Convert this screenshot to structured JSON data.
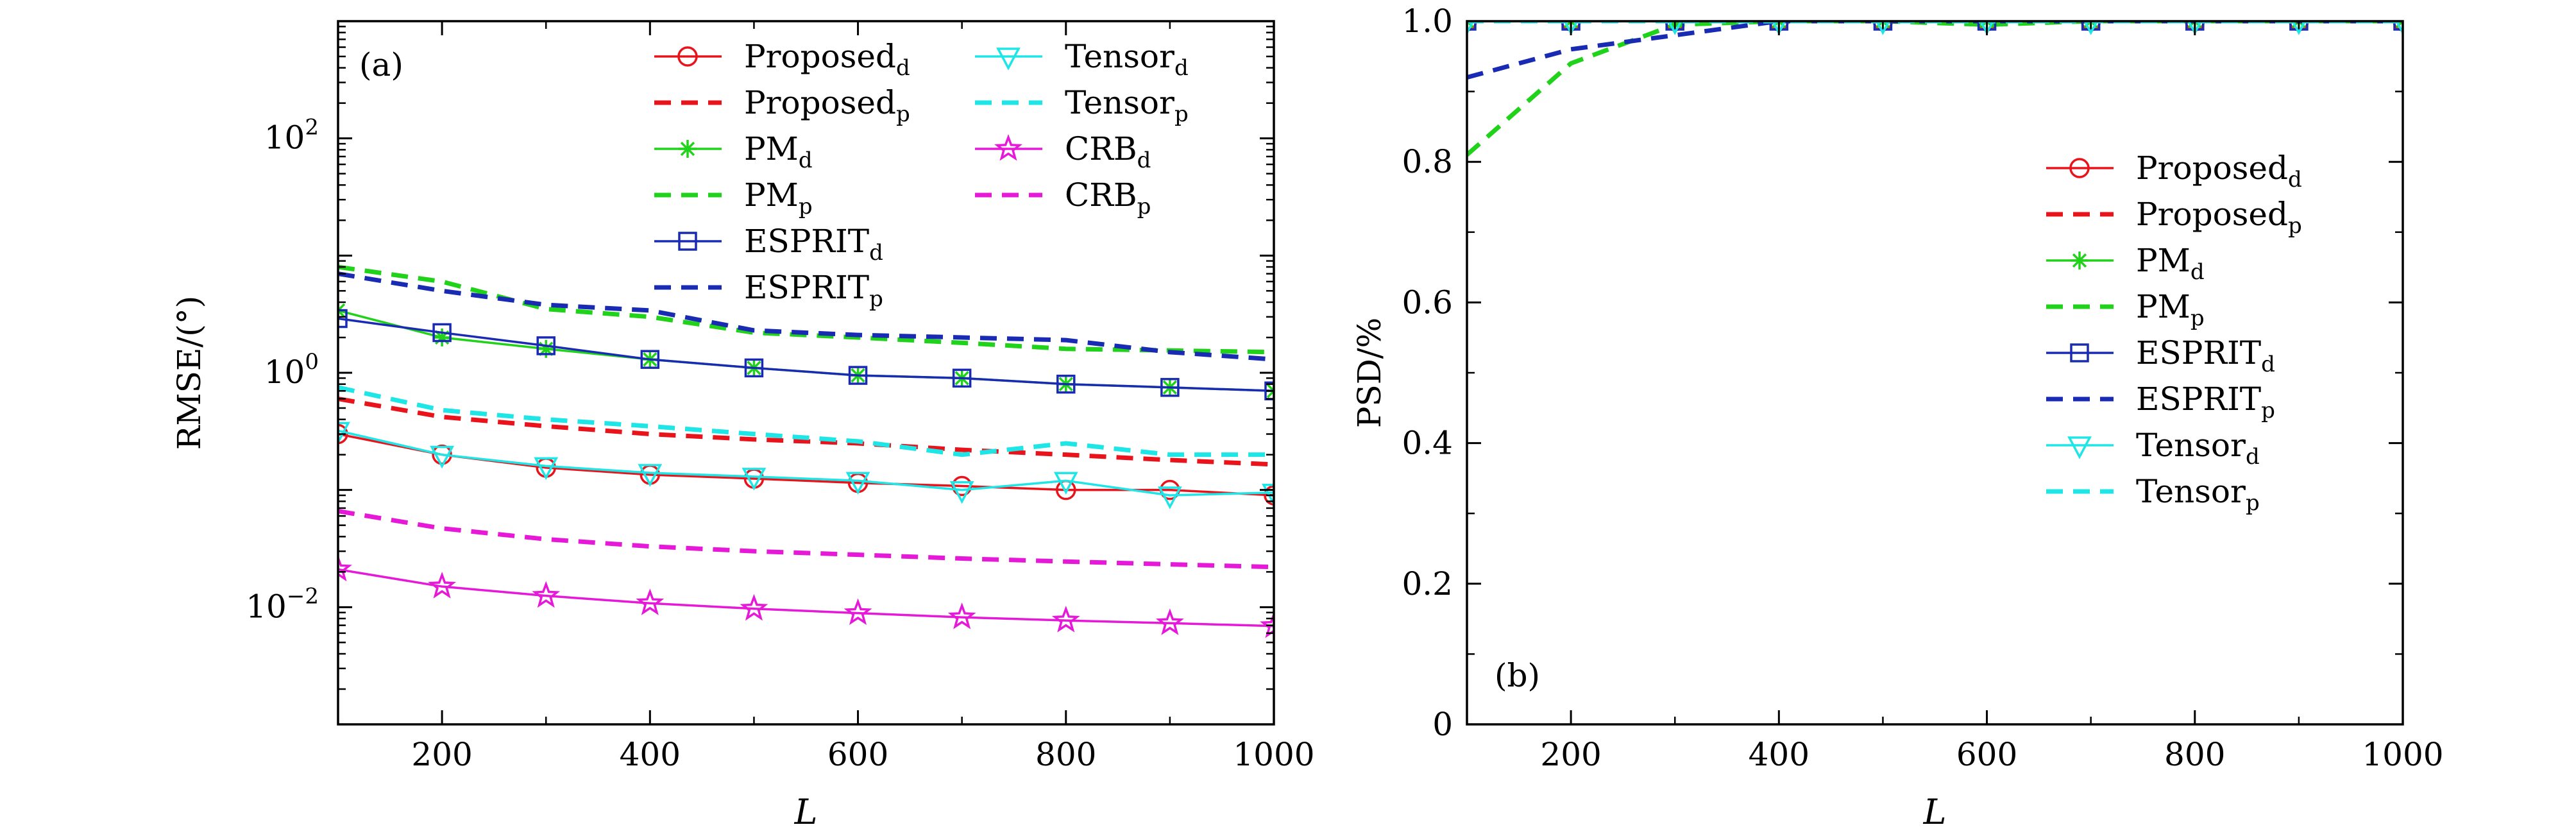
{
  "chart_data": [
    {
      "panel_label": "(a)",
      "type": "line",
      "xlabel": "L",
      "ylabel": "RMSE/(°)",
      "xlim": [
        100,
        1000
      ],
      "ylim": [
        0.001,
        1000
      ],
      "yscale": "log",
      "xticks": [
        200,
        400,
        600,
        800,
        1000
      ],
      "yticks": [
        {
          "value": 0.01,
          "base": "10",
          "exp": "−2"
        },
        {
          "value": 1,
          "base": "10",
          "exp": "0"
        },
        {
          "value": 100,
          "base": "10",
          "exp": "2"
        }
      ],
      "grid": false,
      "legend": "top-right, two columns",
      "x": [
        100,
        200,
        300,
        400,
        500,
        600,
        700,
        800,
        900,
        1000
      ],
      "series": [
        {
          "name": "Proposed",
          "sub": "d",
          "color": "#e8131b",
          "style": "solid",
          "marker": "circle",
          "values": [
            0.3,
            0.2,
            0.155,
            0.135,
            0.125,
            0.115,
            0.108,
            0.1,
            0.1,
            0.09
          ]
        },
        {
          "name": "Proposed",
          "sub": "p",
          "color": "#e8131b",
          "style": "dashed",
          "marker": "none",
          "values": [
            0.6,
            0.42,
            0.35,
            0.3,
            0.27,
            0.25,
            0.22,
            0.2,
            0.18,
            0.165
          ]
        },
        {
          "name": "PM",
          "sub": "d",
          "color": "#21d21a",
          "style": "solid",
          "marker": "asterisk",
          "values": [
            3.4,
            2.0,
            1.6,
            1.3,
            1.1,
            0.95,
            0.9,
            0.8,
            0.75,
            0.7
          ]
        },
        {
          "name": "PM",
          "sub": "p",
          "color": "#21d21a",
          "style": "dashed",
          "marker": "none",
          "values": [
            8.0,
            6.0,
            3.5,
            3.0,
            2.2,
            2.0,
            1.8,
            1.6,
            1.55,
            1.5
          ]
        },
        {
          "name": "ESPRIT",
          "sub": "d",
          "color": "#1a2bb3",
          "style": "solid",
          "marker": "square",
          "values": [
            2.9,
            2.2,
            1.7,
            1.3,
            1.1,
            0.95,
            0.9,
            0.8,
            0.75,
            0.7
          ]
        },
        {
          "name": "ESPRIT",
          "sub": "p",
          "color": "#1a2bb3",
          "style": "dashed",
          "marker": "none",
          "values": [
            7.0,
            5.0,
            3.8,
            3.4,
            2.3,
            2.1,
            2.0,
            1.9,
            1.5,
            1.3
          ]
        },
        {
          "name": "Tensor",
          "sub": "d",
          "color": "#1ee6e6",
          "style": "solid",
          "marker": "triangle-down",
          "values": [
            0.32,
            0.2,
            0.16,
            0.14,
            0.13,
            0.12,
            0.1,
            0.12,
            0.09,
            0.095
          ]
        },
        {
          "name": "Tensor",
          "sub": "p",
          "color": "#1ee6e6",
          "style": "dashed",
          "marker": "none",
          "values": [
            0.75,
            0.48,
            0.4,
            0.35,
            0.3,
            0.26,
            0.2,
            0.25,
            0.2,
            0.2
          ]
        },
        {
          "name": "CRB",
          "sub": "d",
          "color": "#e619d8",
          "style": "solid",
          "marker": "star",
          "values": [
            0.021,
            0.015,
            0.0125,
            0.0108,
            0.0097,
            0.0089,
            0.0082,
            0.0077,
            0.0073,
            0.0069
          ]
        },
        {
          "name": "CRB",
          "sub": "p",
          "color": "#e619d8",
          "style": "dashed",
          "marker": "none",
          "values": [
            0.066,
            0.047,
            0.038,
            0.033,
            0.03,
            0.028,
            0.026,
            0.0245,
            0.0232,
            0.022
          ]
        }
      ]
    },
    {
      "panel_label": "(b)",
      "type": "line",
      "xlabel": "L",
      "ylabel": "PSD/%",
      "xlim": [
        100,
        1000
      ],
      "ylim": [
        0,
        1
      ],
      "yscale": "linear",
      "xticks": [
        200,
        400,
        600,
        800,
        1000
      ],
      "yticks": [
        {
          "value": 0,
          "label": "0"
        },
        {
          "value": 0.2,
          "label": "0.2"
        },
        {
          "value": 0.4,
          "label": "0.4"
        },
        {
          "value": 0.6,
          "label": "0.6"
        },
        {
          "value": 0.8,
          "label": "0.8"
        },
        {
          "value": 1.0,
          "label": "1.0"
        }
      ],
      "grid": false,
      "legend": "right",
      "x": [
        100,
        200,
        300,
        400,
        500,
        600,
        700,
        800,
        900,
        1000
      ],
      "series": [
        {
          "name": "Proposed",
          "sub": "d",
          "color": "#e8131b",
          "style": "solid",
          "marker": "circle",
          "values": [
            1,
            1,
            1,
            1,
            1,
            1,
            1,
            1,
            1,
            1
          ]
        },
        {
          "name": "Proposed",
          "sub": "p",
          "color": "#e8131b",
          "style": "dashed",
          "marker": "none",
          "values": [
            1,
            1,
            1,
            1,
            1,
            1,
            1,
            1,
            1,
            1
          ]
        },
        {
          "name": "PM",
          "sub": "d",
          "color": "#21d21a",
          "style": "solid",
          "marker": "asterisk",
          "values": [
            1,
            1,
            1,
            1,
            1,
            1,
            1,
            1,
            1,
            1
          ]
        },
        {
          "name": "PM",
          "sub": "p",
          "color": "#21d21a",
          "style": "dashed",
          "marker": "none",
          "values": [
            0.81,
            0.94,
            0.995,
            1,
            1,
            0.995,
            1,
            1,
            1,
            1
          ]
        },
        {
          "name": "ESPRIT",
          "sub": "d",
          "color": "#1a2bb3",
          "style": "solid",
          "marker": "square",
          "values": [
            1,
            1,
            1,
            1,
            1,
            1,
            1,
            1,
            1,
            1
          ]
        },
        {
          "name": "ESPRIT",
          "sub": "p",
          "color": "#1a2bb3",
          "style": "dashed",
          "marker": "none",
          "values": [
            0.92,
            0.96,
            0.98,
            1,
            1,
            1,
            1,
            1,
            1,
            1
          ]
        },
        {
          "name": "Tensor",
          "sub": "d",
          "color": "#1ee6e6",
          "style": "solid",
          "marker": "triangle-down",
          "values": [
            1,
            1,
            1,
            1,
            1,
            1,
            1,
            1,
            1,
            1
          ]
        },
        {
          "name": "Tensor",
          "sub": "p",
          "color": "#1ee6e6",
          "style": "dashed",
          "marker": "none",
          "values": [
            1,
            1,
            1,
            1,
            1,
            1,
            1,
            1,
            1,
            1
          ]
        }
      ]
    }
  ]
}
